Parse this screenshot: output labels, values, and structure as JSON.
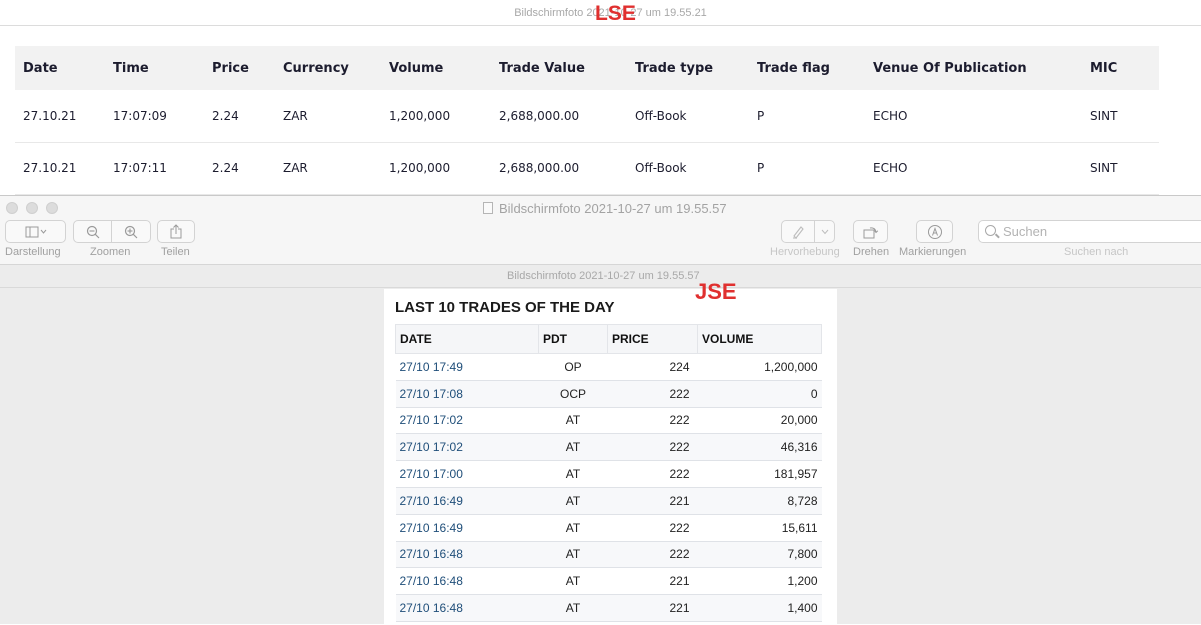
{
  "back_window": {
    "title": "Bildschirmfoto 2021-10-27 um 19.55.21",
    "annotation": "LSE",
    "table": {
      "columns": [
        "Date",
        "Time",
        "Price",
        "Currency",
        "Volume",
        "Trade Value",
        "Trade type",
        "Trade flag",
        "Venue Of Publication",
        "MIC"
      ],
      "rows": [
        [
          "27.10.21",
          "17:07:09",
          "2.24",
          "ZAR",
          "1,200,000",
          "2,688,000.00",
          "Off-Book",
          "P",
          "ECHO",
          "SINT"
        ],
        [
          "27.10.21",
          "17:07:11",
          "2.24",
          "ZAR",
          "1,200,000",
          "2,688,000.00",
          "Off-Book",
          "P",
          "ECHO",
          "SINT"
        ]
      ]
    }
  },
  "front_window": {
    "title": "Bildschirmfoto 2021-10-27 um 19.55.57",
    "doc_title": "Bildschirmfoto 2021-10-27 um 19.55.57",
    "toolbar": {
      "view_label": "Darstellung",
      "zoom_label": "Zoomen",
      "share_label": "Teilen",
      "highlight_label": "Hervorhebung",
      "rotate_label": "Drehen",
      "markup_label": "Markierungen",
      "search_placeholder": "Suchen",
      "search_label": "Suchen nach"
    },
    "annotation": "JSE",
    "jse": {
      "heading": "LAST 10 TRADES OF THE DAY",
      "columns": [
        "DATE",
        "PDT",
        "PRICE",
        "VOLUME"
      ],
      "rows": [
        [
          "27/10 17:49",
          "OP",
          "224",
          "1,200,000"
        ],
        [
          "27/10 17:08",
          "OCP",
          "222",
          "0"
        ],
        [
          "27/10 17:02",
          "AT",
          "222",
          "20,000"
        ],
        [
          "27/10 17:02",
          "AT",
          "222",
          "46,316"
        ],
        [
          "27/10 17:00",
          "AT",
          "222",
          "181,957"
        ],
        [
          "27/10 16:49",
          "AT",
          "221",
          "8,728"
        ],
        [
          "27/10 16:49",
          "AT",
          "222",
          "15,611"
        ],
        [
          "27/10 16:48",
          "AT",
          "222",
          "7,800"
        ],
        [
          "27/10 16:48",
          "AT",
          "221",
          "1,200"
        ],
        [
          "27/10 16:48",
          "AT",
          "221",
          "1,400"
        ]
      ]
    }
  }
}
